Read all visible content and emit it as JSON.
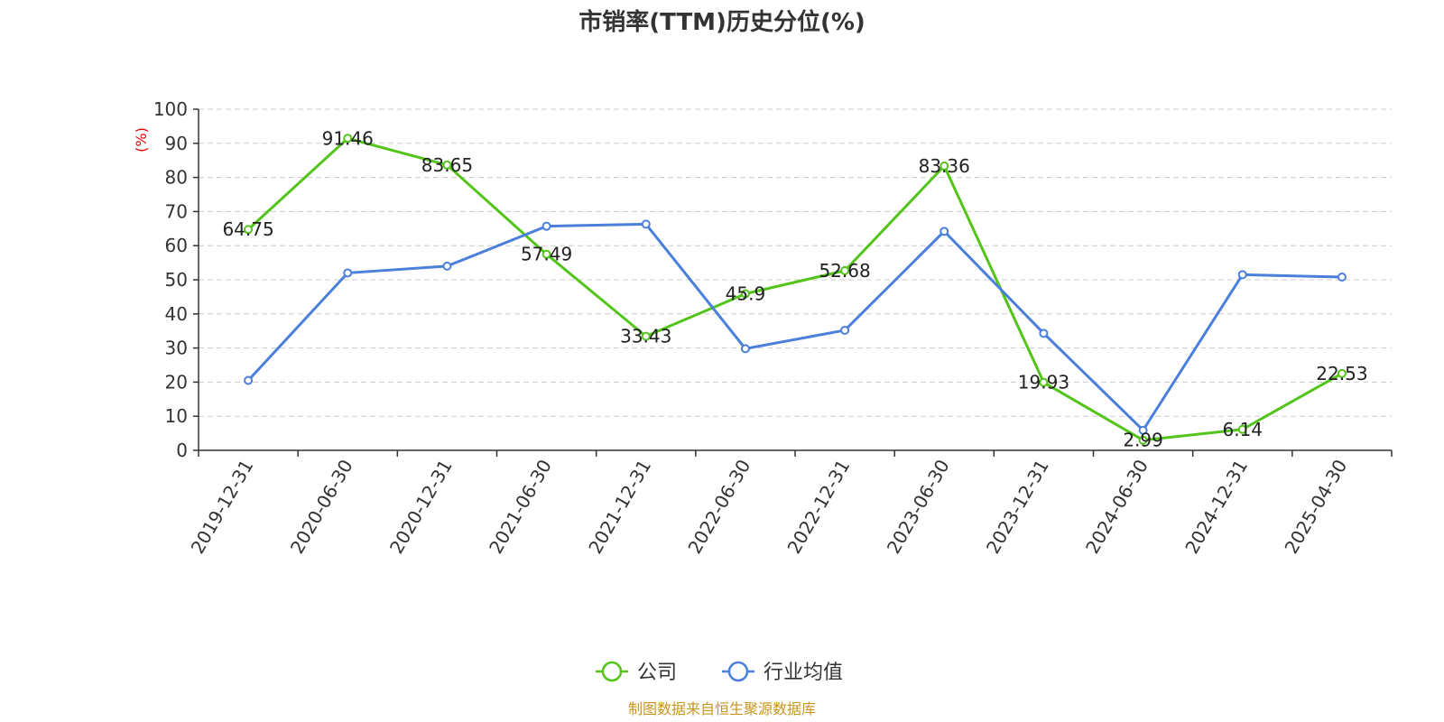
{
  "chart_data": {
    "type": "line",
    "title": "市销率(TTM)历史分位(%)",
    "ylabel": "(%)",
    "xlabel": "",
    "ylim": [
      0,
      100
    ],
    "yticks": [
      0,
      10,
      20,
      30,
      40,
      50,
      60,
      70,
      80,
      90,
      100
    ],
    "grid": true,
    "legend_position": "bottom-center",
    "categories": [
      "2019-12-31",
      "2020-06-30",
      "2020-12-31",
      "2021-06-30",
      "2021-12-31",
      "2022-06-30",
      "2022-12-31",
      "2023-06-30",
      "2023-12-31",
      "2024-06-30",
      "2024-12-31",
      "2025-04-30"
    ],
    "series": [
      {
        "name": "公司",
        "color": "#52c41a",
        "values": [
          64.75,
          91.46,
          83.65,
          57.49,
          33.43,
          45.9,
          52.68,
          83.36,
          19.93,
          2.99,
          6.14,
          22.53
        ],
        "labels": [
          "64.75",
          "91.46",
          "83.65",
          "57.49",
          "33.43",
          "45.9",
          "52.68",
          "83.36",
          "19.93",
          "2.99",
          "6.14",
          "22.53"
        ],
        "show_labels": true
      },
      {
        "name": "行业均值",
        "color": "#4a7fdc",
        "values": [
          20.5,
          52.0,
          54.0,
          65.7,
          66.3,
          29.8,
          35.2,
          64.2,
          34.3,
          5.9,
          51.5,
          50.8
        ],
        "show_labels": false
      }
    ],
    "source": "制图数据来自恒生聚源数据库"
  }
}
